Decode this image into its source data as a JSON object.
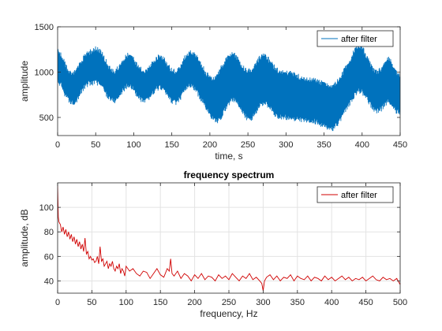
{
  "chart_data": [
    {
      "type": "line",
      "title": "",
      "xlabel": "time, s",
      "ylabel": "amplitude",
      "xlim": [
        0,
        450
      ],
      "ylim": [
        300,
        1500
      ],
      "xticks": [
        0,
        50,
        100,
        150,
        200,
        250,
        300,
        350,
        400,
        450
      ],
      "yticks": [
        500,
        1000,
        1500
      ],
      "grid": false,
      "legend_position": "top-right",
      "series": [
        {
          "name": "after filter",
          "color": "#0072BD",
          "style": "dense oscillating band (upper and lower envelope, amplitude)",
          "x": [
            0,
            5,
            10,
            15,
            20,
            25,
            30,
            35,
            40,
            45,
            50,
            55,
            60,
            65,
            70,
            75,
            80,
            85,
            90,
            95,
            100,
            105,
            110,
            115,
            120,
            125,
            130,
            135,
            140,
            145,
            150,
            155,
            160,
            165,
            170,
            175,
            180,
            185,
            190,
            195,
            200,
            205,
            210,
            215,
            220,
            225,
            230,
            235,
            240,
            245,
            250,
            255,
            260,
            265,
            270,
            275,
            280,
            285,
            290,
            295,
            300,
            305,
            310,
            315,
            320,
            325,
            330,
            335,
            340,
            345,
            350,
            355,
            360,
            365,
            370,
            375,
            380,
            385,
            390,
            395,
            400,
            405,
            410,
            415,
            420,
            425,
            430,
            435,
            440,
            445,
            450
          ],
          "upper": [
            1260,
            1220,
            1120,
            1030,
            1010,
            1050,
            1130,
            1200,
            1240,
            1260,
            1290,
            1270,
            1210,
            1120,
            1060,
            1040,
            1080,
            1150,
            1210,
            1220,
            1180,
            1100,
            1060,
            1040,
            1080,
            1140,
            1190,
            1200,
            1170,
            1100,
            1050,
            1030,
            1080,
            1160,
            1230,
            1260,
            1230,
            1160,
            1090,
            1020,
            970,
            960,
            1000,
            1080,
            1160,
            1220,
            1240,
            1200,
            1130,
            1070,
            1040,
            1060,
            1120,
            1180,
            1210,
            1190,
            1140,
            1080,
            1040,
            1030,
            1020,
            1020,
            1010,
            990,
            960,
            950,
            950,
            950,
            940,
            920,
            900,
            890,
            880,
            900,
            960,
            1030,
            1110,
            1180,
            1270,
            1320,
            1300,
            1220,
            1130,
            1060,
            1030,
            1060,
            1120,
            1180,
            1120,
            1030,
            990
          ],
          "lower": [
            860,
            820,
            720,
            650,
            630,
            660,
            740,
            800,
            840,
            850,
            860,
            840,
            790,
            710,
            670,
            650,
            690,
            760,
            810,
            820,
            780,
            700,
            660,
            640,
            680,
            740,
            790,
            800,
            770,
            700,
            650,
            630,
            670,
            740,
            800,
            820,
            790,
            720,
            650,
            580,
            500,
            440,
            420,
            480,
            560,
            630,
            670,
            640,
            570,
            500,
            450,
            460,
            520,
            590,
            630,
            610,
            560,
            510,
            480,
            470,
            470,
            470,
            460,
            450,
            440,
            430,
            430,
            430,
            420,
            400,
            380,
            360,
            340,
            370,
            430,
            500,
            570,
            640,
            720,
            760,
            750,
            690,
            620,
            560,
            540,
            560,
            610,
            650,
            600,
            540,
            510
          ]
        }
      ]
    },
    {
      "type": "line",
      "title": "frequency spectrum",
      "xlabel": "frequency, Hz",
      "ylabel": "amplitude, dB",
      "xlim": [
        0,
        500
      ],
      "ylim": [
        30,
        120
      ],
      "xticks": [
        0,
        50,
        100,
        150,
        200,
        250,
        300,
        350,
        400,
        450,
        500
      ],
      "yticks": [
        40,
        60,
        80,
        100
      ],
      "grid": true,
      "legend_position": "top-right",
      "series": [
        {
          "name": "after filter",
          "color": "#D00000",
          "x": [
            0,
            1,
            2,
            4,
            6,
            8,
            10,
            12,
            14,
            16,
            18,
            20,
            22,
            24,
            26,
            28,
            30,
            32,
            34,
            36,
            38,
            40,
            42,
            44,
            46,
            48,
            50,
            52,
            54,
            56,
            58,
            60,
            62,
            64,
            66,
            68,
            70,
            72,
            74,
            76,
            78,
            80,
            82,
            84,
            86,
            88,
            90,
            92,
            94,
            96,
            98,
            100,
            105,
            110,
            115,
            120,
            125,
            130,
            135,
            140,
            145,
            150,
            155,
            160,
            163,
            165,
            167,
            170,
            175,
            180,
            185,
            190,
            195,
            200,
            205,
            210,
            215,
            220,
            225,
            230,
            235,
            240,
            245,
            250,
            255,
            260,
            265,
            270,
            275,
            280,
            285,
            290,
            295,
            298,
            300,
            302,
            305,
            310,
            315,
            320,
            325,
            330,
            335,
            340,
            345,
            350,
            355,
            360,
            365,
            370,
            375,
            380,
            385,
            390,
            395,
            400,
            405,
            410,
            415,
            420,
            425,
            430,
            435,
            440,
            445,
            450,
            455,
            460,
            465,
            470,
            475,
            480,
            485,
            490,
            495,
            500
          ],
          "values": [
            118,
            92,
            88,
            86,
            80,
            84,
            78,
            82,
            76,
            80,
            74,
            78,
            72,
            76,
            70,
            74,
            68,
            72,
            66,
            70,
            64,
            75,
            62,
            64,
            58,
            60,
            57,
            58,
            55,
            56,
            60,
            54,
            68,
            56,
            58,
            52,
            54,
            56,
            50,
            54,
            52,
            56,
            50,
            48,
            52,
            50,
            54,
            46,
            50,
            48,
            44,
            52,
            48,
            50,
            46,
            44,
            48,
            47,
            42,
            46,
            50,
            45,
            43,
            50,
            48,
            58,
            46,
            44,
            48,
            42,
            46,
            44,
            40,
            45,
            42,
            46,
            41,
            44,
            43,
            40,
            45,
            42,
            44,
            41,
            46,
            43,
            40,
            44,
            42,
            46,
            41,
            43,
            40,
            38,
            32,
            40,
            43,
            45,
            41,
            44,
            40,
            43,
            42,
            45,
            40,
            44,
            42,
            41,
            44,
            40,
            43,
            42,
            40,
            44,
            41,
            43,
            40,
            42,
            44,
            41,
            43,
            40,
            42,
            41,
            43,
            40,
            42,
            44,
            41,
            40,
            43,
            41,
            42,
            40,
            42,
            37
          ]
        }
      ]
    }
  ]
}
